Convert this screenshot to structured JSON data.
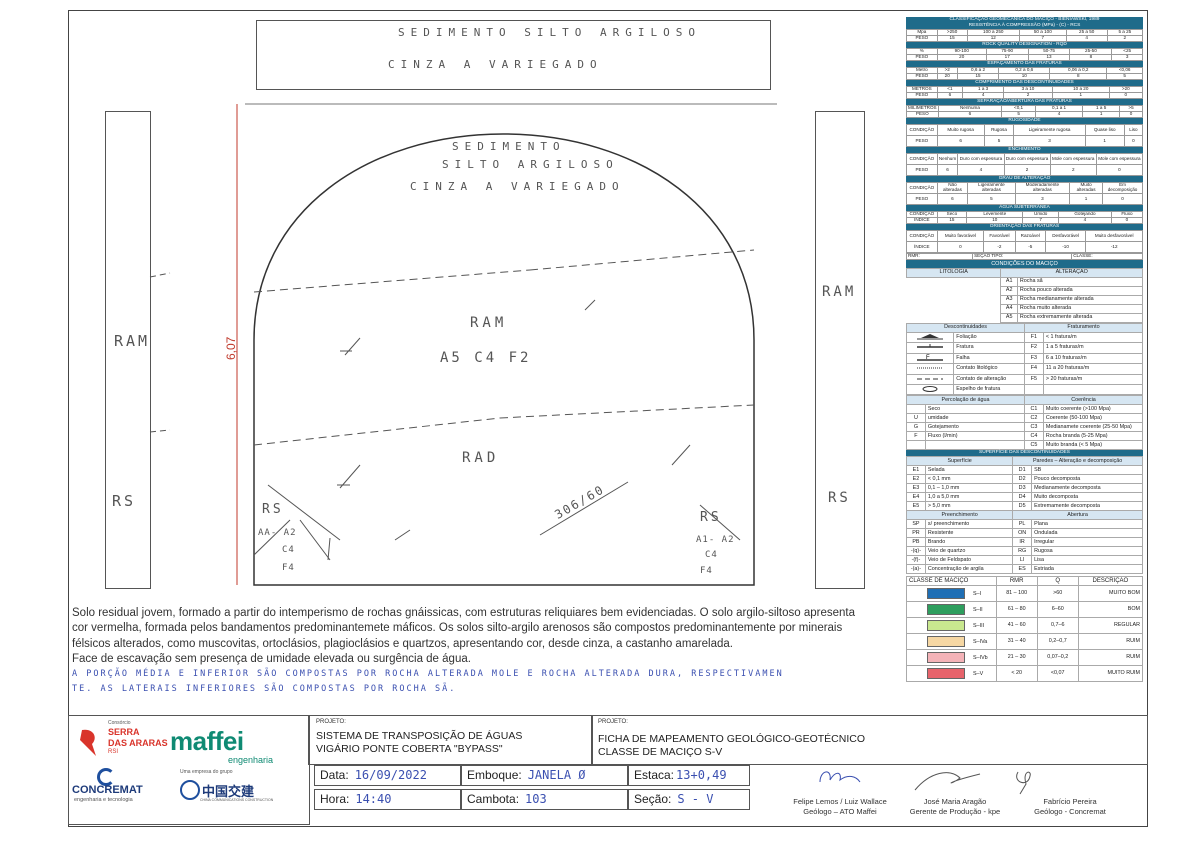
{
  "section": {
    "top_note_line1": "SEDIMENTO SILTO ARGILOSO",
    "top_note_line2": "CINZA A VARIEGADO",
    "inner_note_line1": "SEDIMENTO",
    "inner_note_line2": "SILTO ARGILOSO",
    "inner_note_line3": "CINZA A VARIEGADO",
    "label_ram_left": "RAM",
    "label_ram_right": "RAM",
    "label_rs_left": "RS",
    "label_rs_right": "RS",
    "label_ram_center": "RAM",
    "label_classes": "A5 C4 F2",
    "label_rad": "RAD",
    "label_orientation": "306/60",
    "label_rs_inner_left": "RS",
    "label_aa_left": "AA- A2",
    "label_c4_left": "C4",
    "label_f4_left": "F4",
    "label_rs_inner_right": "RS",
    "label_a1_right": "A1- A2",
    "label_c4_right": "C4",
    "label_f4_right": "F4",
    "height_label": "6,07"
  },
  "classification": {
    "title": "CLASSIFICAÇÃO GEOMECÂNICA DO MACIÇO - BIENIAWSKI, 1989",
    "resistencia_title": "RESISTÊNCIA À COMPRESSÃO (MPa) - (C) - RCS",
    "resistencia": {
      "label": "Mpa",
      "values": [
        ">250",
        "100 a 250",
        "50 a 100",
        "25 a 50",
        "5 a 25"
      ],
      "peso_label": "PESO",
      "pesos": [
        "15",
        "12",
        "7",
        "4",
        "2"
      ]
    },
    "rqd_title": "ROCK QUALITY DESIGNATION - RQD",
    "rqd": {
      "label": "%",
      "values": [
        "90-100",
        "75-90",
        "50-75",
        "25-50",
        "<25"
      ],
      "peso_label": "PESO",
      "pesos": [
        "20",
        "17",
        "13",
        "8",
        "3"
      ]
    },
    "espacamento_title": "ESPAÇAMENTO DAS FRATURAS",
    "espacamento": {
      "label": "Metro",
      "values": [
        ">2",
        "0,6 a 2",
        "0,2 a 0,6",
        "0,06 a 0,2",
        "<0,06"
      ],
      "peso_label": "PESO",
      "pesos": [
        "20",
        "15",
        "10",
        "8",
        "5"
      ]
    },
    "comprimento_title": "COMPRIMENTO DAS DESCONTINUIDADES",
    "comprimento": {
      "label": "METROS",
      "values": [
        "<1",
        "1 a 3",
        "3 a 10",
        "10 a 20",
        ">20"
      ],
      "peso_label": "PESO",
      "pesos": [
        "6",
        "4",
        "2",
        "1",
        "0"
      ]
    },
    "abertura_title": "SEPARAÇÃO/ABERTURA DAS FRATURAS",
    "abertura": {
      "label": "MILÍMETROS",
      "values": [
        "Nenhuma",
        "<0,1",
        "0,1 a 1",
        "1 a 5",
        ">5"
      ],
      "peso_label": "PESO",
      "pesos": [
        "6",
        "5",
        "4",
        "1",
        "0"
      ]
    },
    "rugosidade_title": "RUGOSIDADE",
    "rugosidade": {
      "label": "CONDIÇÃO",
      "values": [
        "Muito rugosa",
        "Rugosa",
        "Ligeiramente rugosa",
        "Quase liso",
        "Liso"
      ],
      "peso_label": "PESO",
      "pesos": [
        "6",
        "5",
        "3",
        "1",
        "0"
      ]
    },
    "enchimento_title": "ENCHIMENTO",
    "enchimento": {
      "label": "CONDIÇÃO",
      "values": [
        "Nenhum",
        "Duro com espessura",
        "Duro com espessura",
        "Mole com espessura",
        "Mole com espessura"
      ],
      "peso_label": "PESO",
      "pesos": [
        "6",
        "4",
        "2",
        "2",
        "0"
      ]
    },
    "alteracao_title": "GRAU DE ALTERAÇÃO",
    "alteracao": {
      "label": "CONDIÇÃO",
      "values": [
        "Não alteradas",
        "Ligeiramente alteradas",
        "Moderadamente alteradas",
        "Muito alteradas",
        "Em decomposição"
      ],
      "peso_label": "PESO",
      "pesos": [
        "6",
        "5",
        "3",
        "1",
        "0"
      ]
    },
    "agua_title": "ÁGUA SUBTERRÂNEA",
    "agua": {
      "label": "CONDIÇÃO",
      "values": [
        "Seco",
        "Levemente",
        "Úmido",
        "Gotejando",
        "Fluxo"
      ],
      "peso_label": "ÍNDICE",
      "pesos": [
        "15",
        "10",
        "7",
        "4",
        "0"
      ]
    },
    "orientacao_title": "ORIENTAÇÃO DAS FRATURAS",
    "orientacao": {
      "label": "CONDIÇÃO",
      "values": [
        "Muito favorável",
        "Favorável",
        "Razoável",
        "Desfavorável",
        "Muito desfavorável"
      ],
      "peso_label": "ÍNDICE",
      "pesos": [
        "0",
        "-2",
        "-5",
        "-10",
        "-12"
      ]
    },
    "rmr_row": {
      "rmr": "RMR:",
      "secao": "SEÇÃO TIPO:",
      "classe": "CLASSE:"
    }
  },
  "legend": {
    "title": "CONDIÇÕES DO MACIÇO",
    "col_litologia": "LITOLOGIA",
    "col_alteracao": "ALTERAÇÃO",
    "alteracao_items": [
      {
        "code": "A1",
        "label": "Rocha sã"
      },
      {
        "code": "A2",
        "label": "Rocha pouco alterada"
      },
      {
        "code": "A3",
        "label": "Rocha medianamente alterada"
      },
      {
        "code": "A4",
        "label": "Rocha muito alterada"
      },
      {
        "code": "A5",
        "label": "Rocha extremamente alterada"
      }
    ],
    "col_descontinuidades": "Descontinuidades",
    "col_fraturamento": "Fraturamento",
    "descontinuidades": [
      "Foliação",
      "Fratura",
      "Falha",
      "Contato litológico",
      "Contato de alteração",
      "Espelho de fratura"
    ],
    "fraturamento": [
      {
        "code": "F1",
        "label": "< 1 fratura/m"
      },
      {
        "code": "F2",
        "label": "1 a 5 fraturas/m"
      },
      {
        "code": "F3",
        "label": "6 a 10 fraturas/m"
      },
      {
        "code": "F4",
        "label": "11 a 20 fraturas/m"
      },
      {
        "code": "F5",
        "label": "> 20 fraturas/m"
      }
    ],
    "col_percolacao": "Percolação de água",
    "col_coerencia": "Coerência",
    "percolacao": [
      {
        "code": "",
        "label": "Seco"
      },
      {
        "code": "U",
        "label": "umidade"
      },
      {
        "code": "G",
        "label": "Gotejamento"
      },
      {
        "code": "F",
        "label": "Fluxo (l/min)"
      },
      {
        "code": "",
        "label": ""
      }
    ],
    "coerencia": [
      {
        "code": "C1",
        "label": "Muito coerente (>100 Mpa)"
      },
      {
        "code": "C2",
        "label": "Coerente (50-100 Mpa)"
      },
      {
        "code": "C3",
        "label": "Medianamete coerente (25-50 Mpa)"
      },
      {
        "code": "C4",
        "label": "Rocha branda (5-25 Mpa)"
      },
      {
        "code": "C5",
        "label": "Muito branda (< 5 Mpa)"
      }
    ],
    "superficie_title": "SUPERFÍCIE DAS DESCONTINUIDADES",
    "col_superficie": "Superfície",
    "col_paredes": "Paredes – Alteração e decomposição",
    "superficie": [
      {
        "code": "E1",
        "label": "Selada"
      },
      {
        "code": "E2",
        "label": "< 0,1 mm"
      },
      {
        "code": "E3",
        "label": "0,1 – 1,0 mm"
      },
      {
        "code": "E4",
        "label": "1,0 a 5,0 mm"
      },
      {
        "code": "E5",
        "label": "> 5,0 mm"
      }
    ],
    "paredes": [
      {
        "code": "D1",
        "label": "SB"
      },
      {
        "code": "D2",
        "label": "Pouco decomposta"
      },
      {
        "code": "D3",
        "label": "Medianamente decomposta"
      },
      {
        "code": "D4",
        "label": "Muito decomposta"
      },
      {
        "code": "D5",
        "label": "Extremamente decomposta"
      }
    ],
    "col_preenchimento": "Preenchimento",
    "col_abertura": "Abertura",
    "preenchimento": [
      {
        "code": "SP",
        "label": "s/ preenchimento"
      },
      {
        "code": "PR",
        "label": "Resistente"
      },
      {
        "code": "PB",
        "label": "Brando"
      },
      {
        "code": "-(q)-",
        "label": "Veio de quartzo"
      },
      {
        "code": "-(f)-",
        "label": "Veio de Feldspato"
      },
      {
        "code": "-(a)-",
        "label": "Concentração de argila"
      }
    ],
    "abertura": [
      {
        "code": "PL",
        "label": "Plana"
      },
      {
        "code": "ON",
        "label": "Ondulada"
      },
      {
        "code": "IR",
        "label": "Irregular"
      },
      {
        "code": "RG",
        "label": "Rugosa"
      },
      {
        "code": "LI",
        "label": "Lisa"
      },
      {
        "code": "ES",
        "label": "Estriada"
      }
    ],
    "classes_header": {
      "classe": "CLASSE DE MACIÇO",
      "rmr": "RMR",
      "q": "Q",
      "descricao": "DESCRIÇÃO"
    },
    "classes": [
      {
        "name": "S–I",
        "rmr": "81 – 100",
        "q": ">60",
        "desc": "MUITO BOM",
        "color": "#1f6fb5"
      },
      {
        "name": "S–II",
        "rmr": "61 – 80",
        "q": "6–60",
        "desc": "BOM",
        "color": "#2e9e5e"
      },
      {
        "name": "S–III",
        "rmr": "41 – 60",
        "q": "0,7–6",
        "desc": "REGULAR",
        "color": "#c9e88f"
      },
      {
        "name": "S–IVa",
        "rmr": "31 – 40",
        "q": "0,2–0,7",
        "desc": "RUIM",
        "color": "#f6d7a3"
      },
      {
        "name": "S–IVb",
        "rmr": "21 – 30",
        "q": "0,07–0,2",
        "desc": "RUIM",
        "color": "#f4b3b8"
      },
      {
        "name": "S–V",
        "rmr": "< 20",
        "q": "<0,07",
        "desc": "MUITO RUIM",
        "color": "#e7636b"
      }
    ]
  },
  "description": {
    "line1": "Solo residual jovem, formado a partir do intemperismo de rochas gnáissicas, com estruturas reliquiares bem evidenciadas. O solo argilo-siltoso apresenta",
    "line2": "cor vermelha, formada pelos bandamentos predominantemete máficos. Os solos silto-argilo arenosos são compostos predominantemente por minerais",
    "line3": "félsicos alterados, como muscovitas, ortoclásios, plagioclásios e quartzos, apresentando cor, desde cinza, a castanho amarelada.",
    "line4": "Face de escavação sem presença de umidade elevada ou surgência de água.",
    "hand_line1": "A PORÇÃO MÉDIA E INFERIOR SÃO COMPOSTAS POR ROCHA ALTERADA MOLE E ROCHA ALTERADA DURA, RESPECTIVAMEN",
    "hand_line2": "TE. AS LATERAIS INFERIORES SÃO COMPOSTAS POR ROCHA SÃ."
  },
  "titleblock": {
    "logo_serra_top": "Consórcio",
    "logo_serra_1": "SERRA",
    "logo_serra_2": "DAS ARARAS",
    "logo_serra_3": "RSI",
    "logo_maffei": "maffei",
    "logo_maffei_sub": "engenharia",
    "logo_concremat": "CONCREMAT",
    "logo_concremat_sub": "engenharia e tecnologia",
    "logo_china_top": "Uma empresa do grupo",
    "logo_china": "中国交建",
    "logo_china_sub": "CHINA COMMUNICATIONS CONSTRUCTION",
    "projeto1_label": "PROJETO:",
    "projeto1_line1": "SISTEMA DE TRANSPOSIÇÃO DE ÁGUAS",
    "projeto1_line2": "VIGÁRIO PONTE COBERTA \"BYPASS\"",
    "projeto2_label": "PROJETO:",
    "projeto2_line1": "FICHA DE MAPEAMENTO GEOLÓGICO-GEOTÉCNICO",
    "projeto2_line2": "CLASSE DE MACIÇO S-V",
    "data_label": "Data:",
    "data_value": "16/09/2022",
    "emboque_label": "Emboque:",
    "emboque_value": "JANELA Ø",
    "estaca_label": "Estaca:",
    "estaca_value": "13+0,49",
    "hora_label": "Hora:",
    "hora_value": "14:40",
    "cambota_label": "Cambota:",
    "cambota_value": "103",
    "secao_label": "Seção:",
    "secao_value": "S - V",
    "sig1_name": "Felipe Lemos / Luiz Wallace",
    "sig1_role": "Geólogo – ATO Maffei",
    "sig2_name": "José Maria Aragão",
    "sig2_role": "Gerente de Produção - kpe",
    "sig3_name": "Fabrício Pereira",
    "sig3_role": "Geólogo - Concremat"
  }
}
